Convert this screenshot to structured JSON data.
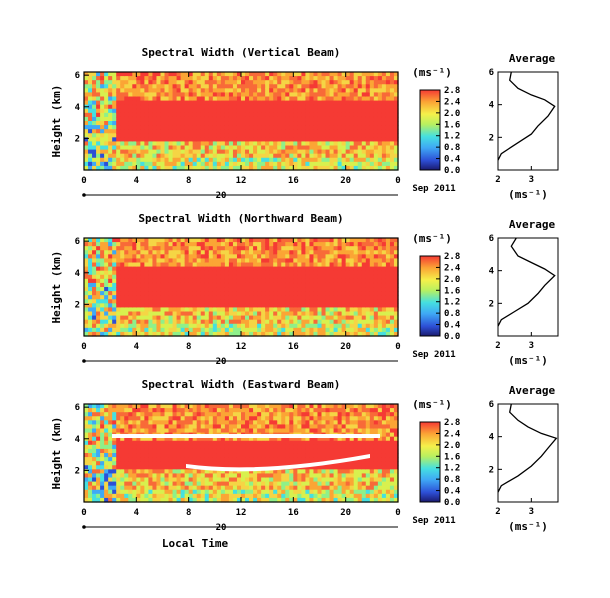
{
  "chart_data": [
    {
      "type": "heatmap",
      "title": "Spectral Width (Vertical Beam)",
      "ylabel": "Height (km)",
      "xlabel": "",
      "x_ticks": [
        "0",
        "4",
        "8",
        "12",
        "16",
        "20",
        "0"
      ],
      "y_ticks": [
        "2",
        "4",
        "6"
      ],
      "xlim": [
        0,
        24
      ],
      "ylim": [
        0,
        6.2
      ],
      "date_label": "20",
      "date_suffix": "Sep 2011",
      "colorbar": {
        "unit": "(ms⁻¹)",
        "ticks": [
          "0.0",
          "0.4",
          "0.8",
          "1.2",
          "1.6",
          "2.0",
          "2.4",
          "2.8"
        ],
        "range": [
          0,
          2.8
        ]
      },
      "average": {
        "title": "Average",
        "xlabel": "(ms⁻¹)",
        "x_ticks": [
          "2",
          "3"
        ],
        "y_ticks": [
          "2",
          "4",
          "6"
        ],
        "xlim": [
          2,
          3.8
        ],
        "ylim": [
          0,
          6
        ],
        "profile": [
          [
            2.0,
            0.6
          ],
          [
            2.1,
            1.0
          ],
          [
            2.4,
            1.4
          ],
          [
            2.7,
            1.8
          ],
          [
            3.0,
            2.2
          ],
          [
            3.2,
            2.7
          ],
          [
            3.5,
            3.3
          ],
          [
            3.7,
            3.9
          ],
          [
            3.4,
            4.3
          ],
          [
            3.0,
            4.6
          ],
          [
            2.6,
            5.0
          ],
          [
            2.35,
            5.5
          ],
          [
            2.4,
            6.0
          ]
        ]
      }
    },
    {
      "type": "heatmap",
      "title": "Spectral Width (Northward Beam)",
      "ylabel": "Height (km)",
      "xlabel": "",
      "x_ticks": [
        "0",
        "4",
        "8",
        "12",
        "16",
        "20",
        "0"
      ],
      "y_ticks": [
        "2",
        "4",
        "6"
      ],
      "xlim": [
        0,
        24
      ],
      "ylim": [
        0,
        6.2
      ],
      "date_label": "20",
      "date_suffix": "Sep 2011",
      "colorbar": {
        "unit": "(ms⁻¹)",
        "ticks": [
          "0.0",
          "0.4",
          "0.8",
          "1.2",
          "1.6",
          "2.0",
          "2.4",
          "2.8"
        ],
        "range": [
          0,
          2.8
        ]
      },
      "average": {
        "title": "Average",
        "xlabel": "(ms⁻¹)",
        "x_ticks": [
          "2",
          "3"
        ],
        "y_ticks": [
          "2",
          "4",
          "6"
        ],
        "xlim": [
          2,
          3.8
        ],
        "ylim": [
          0,
          6
        ],
        "profile": [
          [
            2.0,
            0.6
          ],
          [
            2.1,
            1.0
          ],
          [
            2.5,
            1.5
          ],
          [
            2.9,
            2.0
          ],
          [
            3.2,
            2.6
          ],
          [
            3.4,
            3.1
          ],
          [
            3.7,
            3.7
          ],
          [
            3.4,
            4.1
          ],
          [
            3.0,
            4.5
          ],
          [
            2.6,
            4.9
          ],
          [
            2.4,
            5.5
          ],
          [
            2.55,
            6.0
          ]
        ]
      }
    },
    {
      "type": "heatmap",
      "title": "Spectral Width (Eastward Beam)",
      "ylabel": "Height (km)",
      "xlabel": "Local Time",
      "x_ticks": [
        "0",
        "4",
        "8",
        "12",
        "16",
        "20",
        "0"
      ],
      "y_ticks": [
        "2",
        "4",
        "6"
      ],
      "xlim": [
        0,
        24
      ],
      "ylim": [
        0,
        6.2
      ],
      "date_label": "20",
      "date_suffix": "Sep 2011",
      "colorbar": {
        "unit": "(ms⁻¹)",
        "ticks": [
          "0.0",
          "0.4",
          "0.8",
          "1.2",
          "1.6",
          "2.0",
          "2.4",
          "2.8"
        ],
        "range": [
          0,
          2.8
        ]
      },
      "average": {
        "title": "Average",
        "xlabel": "(ms⁻¹)",
        "x_ticks": [
          "2",
          "3"
        ],
        "y_ticks": [
          "2",
          "4",
          "6"
        ],
        "xlim": [
          2,
          3.8
        ],
        "ylim": [
          0,
          6
        ],
        "profile": [
          [
            2.0,
            0.6
          ],
          [
            2.1,
            1.0
          ],
          [
            2.6,
            1.6
          ],
          [
            3.0,
            2.2
          ],
          [
            3.3,
            2.8
          ],
          [
            3.5,
            3.3
          ],
          [
            3.75,
            3.9
          ],
          [
            3.3,
            4.2
          ],
          [
            2.9,
            4.6
          ],
          [
            2.6,
            5.0
          ],
          [
            2.35,
            5.5
          ],
          [
            2.4,
            6.0
          ]
        ]
      }
    }
  ]
}
